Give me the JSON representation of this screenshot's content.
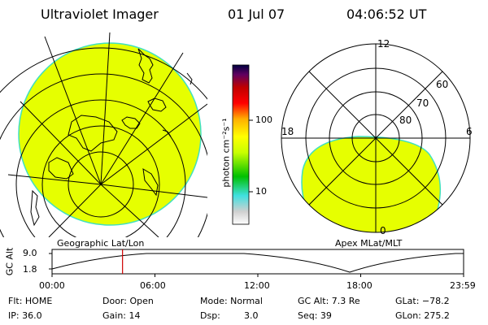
{
  "header": {
    "instrument": "Ultraviolet Imager",
    "date": "01 Jul 07",
    "time": "04:06:52 UT"
  },
  "colorbar": {
    "unit_label": "photon cm⁻²s⁻¹",
    "tick_100": "100",
    "tick_10": "10",
    "gradient": [
      "#ffffff",
      "#d0d0d0",
      "#40e0e0",
      "#00c000",
      "#c8ff00",
      "#ffff00",
      "#ffb000",
      "#ff0000",
      "#c00000",
      "#600060",
      "#000040"
    ]
  },
  "geo_panel": {
    "label": "Geographic Lat/Lon",
    "fill_color": "#e6ff00"
  },
  "apex_panel": {
    "label": "Apex MLat/MLT",
    "mlt_12": "12",
    "mlt_18": "18",
    "mlt_6": "6",
    "mlt_0": "0",
    "lat_60": "60",
    "lat_70": "70",
    "lat_80": "80",
    "fill_color": "#e6ff00"
  },
  "altitude_plot": {
    "ylabel": "GC Alt",
    "ytick_high": "9.0",
    "ytick_low": "1.8",
    "xticks": [
      "00:00",
      "06:00",
      "12:00",
      "18:00",
      "23:59"
    ],
    "current_time_hours": 4.11
  },
  "status": {
    "flt": "Flt: HOME",
    "ip": "IP: 36.0",
    "door": "Door: Open",
    "gain": "Gain: 14",
    "mode": "Mode: Normal",
    "dsp_label": "Dsp:",
    "dsp_value": "3.0",
    "gc_alt": "GC Alt: 7.3 Re",
    "seq": "Seq: 39",
    "glat": "GLat: −78.2",
    "glon": "GLon: 275.2"
  }
}
